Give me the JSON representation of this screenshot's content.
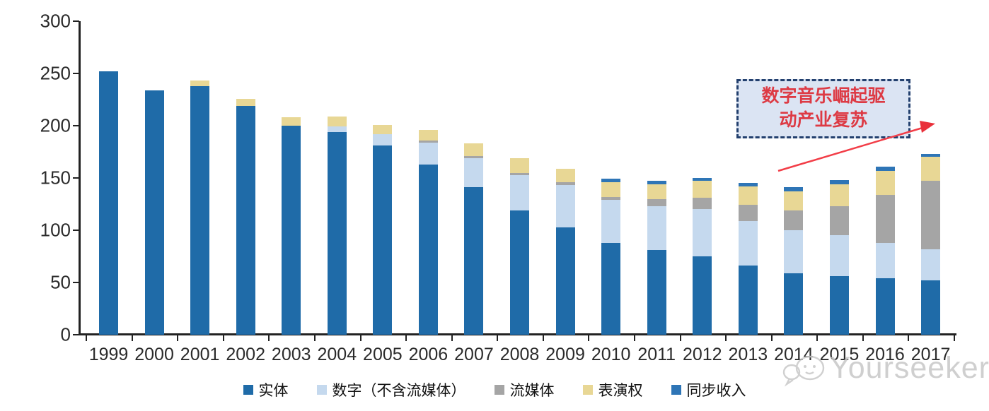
{
  "watermark": {
    "brand": "Yourseeker"
  },
  "annotation": {
    "line1": "数字音乐崛起驱",
    "line2": "动产业复苏"
  },
  "colors": {
    "physical": "#1f6ba8",
    "digital": "#c5d9ee",
    "streaming": "#a5a5a5",
    "performance": "#e8d795",
    "sync": "#2e75b6",
    "axis": "#222222",
    "annotation_fill": "#dbe4f3",
    "annotation_border": "#23406e",
    "annotation_text": "#dd3a44",
    "arrow_red": "#f23d47",
    "watermark_gray": "#c7c7c7"
  },
  "legend": {
    "items": [
      {
        "label": "实体",
        "color": "#1f6ba8"
      },
      {
        "label": "数字（不含流媒体）",
        "color": "#c5d9ee"
      },
      {
        "label": "流媒体",
        "color": "#a5a5a5"
      },
      {
        "label": "表演权",
        "color": "#e8d795"
      },
      {
        "label": "同步收入",
        "color": "#2e75b6"
      }
    ]
  },
  "chart_data": {
    "type": "bar",
    "stacked": true,
    "title": "",
    "xlabel": "",
    "ylabel": "",
    "ylim": [
      0,
      300
    ],
    "y_ticks": [
      0,
      50,
      100,
      150,
      200,
      250,
      300
    ],
    "grid": false,
    "legend_position": "bottom",
    "annotation": "数字音乐崛起驱动产业复苏",
    "categories": [
      "1999",
      "2000",
      "2001",
      "2002",
      "2003",
      "2004",
      "2005",
      "2006",
      "2007",
      "2008",
      "2009",
      "2010",
      "2011",
      "2012",
      "2013",
      "2014",
      "2015",
      "2016",
      "2017"
    ],
    "series": [
      {
        "name": "实体",
        "color": "#1f6ba8",
        "values": [
          252,
          234,
          238,
          219,
          200,
          194,
          181,
          163,
          141,
          119,
          103,
          88,
          81,
          75,
          66,
          59,
          56,
          54,
          52
        ]
      },
      {
        "name": "数字（不含流媒体）",
        "color": "#c5d9ee",
        "values": [
          0,
          0,
          0,
          0,
          0,
          5,
          11,
          21,
          28,
          34,
          40,
          41,
          42,
          45,
          43,
          41,
          39,
          34,
          30
        ]
      },
      {
        "name": "流媒体",
        "color": "#a5a5a5",
        "values": [
          0,
          0,
          0,
          0,
          0,
          0,
          0,
          2,
          2,
          2,
          3,
          3,
          7,
          11,
          15,
          19,
          28,
          46,
          65
        ]
      },
      {
        "name": "表演权",
        "color": "#e8d795",
        "values": [
          0,
          0,
          5,
          7,
          8,
          10,
          9,
          10,
          12,
          14,
          13,
          14,
          14,
          16,
          18,
          18,
          21,
          23,
          23
        ]
      },
      {
        "name": "同步收入",
        "color": "#2e75b6",
        "values": [
          0,
          0,
          0,
          0,
          0,
          0,
          0,
          0,
          0,
          0,
          0,
          3,
          3,
          3,
          3,
          4,
          4,
          4,
          3
        ]
      }
    ],
    "totals": [
      252,
      234,
      243,
      226,
      208,
      209,
      201,
      196,
      183,
      169,
      159,
      149,
      147,
      150,
      145,
      141,
      148,
      161,
      173
    ]
  }
}
